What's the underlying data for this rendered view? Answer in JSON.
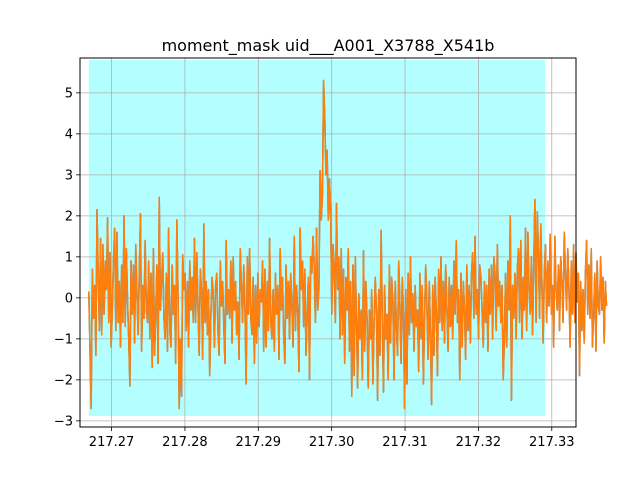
{
  "chart_data": {
    "type": "line",
    "title": "moment_mask uid___A001_X3788_X541b",
    "xlabel": "",
    "ylabel": "",
    "xlim": [
      217.2657,
      217.3333
    ],
    "ylim": [
      -3.15,
      5.85
    ],
    "grid": true,
    "x_ticks": [
      217.27,
      217.28,
      217.29,
      217.3,
      217.31,
      217.32,
      217.33
    ],
    "x_tick_labels": [
      "217.27",
      "217.28",
      "217.29",
      "217.30",
      "217.31",
      "217.32",
      "217.33"
    ],
    "y_ticks": [
      -3,
      -2,
      -1,
      0,
      1,
      2,
      3,
      4,
      5
    ],
    "y_tick_labels": [
      "−3",
      "−2",
      "−1",
      "0",
      "1",
      "2",
      "3",
      "4",
      "5"
    ],
    "mask_region": {
      "x": [
        217.2669,
        217.3291
      ],
      "y": [
        -2.88,
        5.8
      ],
      "color": "#b3ffff"
    },
    "series": [
      {
        "color": "#1f77b4",
        "x_start": 217.2669,
        "x_step": 0.00016,
        "values": [
          0.15,
          -1.2,
          -2.7,
          0.7,
          -0.5,
          0.3,
          -1.4,
          2.15,
          0.6,
          -0.8,
          1.45,
          -0.9,
          1.3,
          -0.4,
          0.9,
          0.2,
          1.95,
          -0.6,
          1.1,
          -1.2,
          -0.3,
          0.9,
          1.7,
          -0.8,
          1.6,
          -0.6,
          0.4,
          -1.2,
          0.8,
          -0.6,
          2.0,
          -0.7,
          1.2,
          -0.1,
          -1.0,
          -2.15,
          0.9,
          -0.4,
          0.8,
          -1.1,
          1.3,
          0.1,
          -0.9,
          0.6,
          2.05,
          -1.3,
          0.3,
          -0.5,
          1.4,
          -0.3,
          -0.6,
          0.9,
          -1.0,
          0.6,
          -1.7,
          1.2,
          -1.4,
          -0.4,
          0.8,
          -1.6,
          2.45,
          -0.3,
          0.4,
          1.1,
          -0.5,
          -1.0,
          0.6,
          -1.3,
          1.7,
          -0.8,
          -1.2,
          0.8,
          -0.4,
          0.3,
          -1.6,
          1.9,
          0.1,
          -2.7,
          -1.0,
          -2.4,
          1.05,
          0.2,
          0.6,
          -0.8,
          0.4,
          -1.2,
          0.9,
          -0.3,
          0.5,
          -0.6,
          1.45,
          -0.6,
          1.1,
          -0.2,
          -1.4,
          0.7,
          0.2,
          -1.5,
          1.8,
          -0.6,
          0.4,
          -0.9,
          0.2,
          -1.9,
          -0.4,
          0.5,
          0.1,
          -1.2,
          0.3,
          0.6,
          -0.8,
          -1.4,
          0.9,
          -0.2,
          0.4,
          -0.7,
          -1.6,
          1.4,
          -0.4,
          0.2,
          -0.5,
          0.9,
          -1.1,
          1.0,
          -0.3,
          0.4,
          -0.9,
          -0.1,
          -1.5,
          1.2,
          0.3,
          -0.6,
          0.8,
          -0.2,
          -2.1,
          1.0,
          -0.4,
          1.2,
          -0.5,
          -0.9,
          0.5,
          -1.6,
          0.3,
          -1.1,
          0.6,
          -0.7,
          0.2,
          -0.1,
          0.9,
          -1.3,
          0.7,
          -1.2,
          0.4,
          -0.8,
          1.45,
          -0.6,
          -1.0,
          0.2,
          -1.3,
          0.6,
          -0.4,
          0.3,
          -1.5,
          1.2,
          -0.3,
          0.5,
          -0.9,
          -1.6,
          0.8,
          -0.5,
          0.4,
          -1.0,
          0.6,
          -0.2,
          -1.2,
          1.5,
          -0.8,
          0.3,
          -0.4,
          -1.8,
          1.7,
          0.2,
          0.9,
          -0.7,
          0.7,
          -1.4,
          -0.4,
          0.5,
          -2.0,
          1.0,
          0.6,
          1.5,
          0.8,
          -0.6,
          1.7,
          -0.3,
          0.2,
          3.1,
          1.9,
          2.5,
          5.3,
          4.4,
          3.0,
          3.6,
          1.9,
          2.9,
          2.1,
          -0.4,
          1.3,
          0.8,
          -0.6,
          2.3,
          0.2,
          1.0,
          -1.0,
          1.2,
          -0.9,
          0.7,
          -1.6,
          0.5,
          -0.3,
          1.2,
          -1.3,
          0.4,
          -2.4,
          0.8,
          -1.9,
          1.0,
          -0.6,
          -2.2,
          0.1,
          -1.0,
          -0.3,
          -2.0,
          1.15,
          -1.3,
          0.4,
          -0.5,
          -2.2,
          -0.3,
          -1.0,
          0.2,
          -2.1,
          -0.6,
          0.5,
          -0.3,
          -2.5,
          0.2,
          -1.4,
          1.65,
          -0.5,
          -2.3,
          0.3,
          -1.0,
          -0.4,
          -2.0,
          0.8,
          -1.1,
          0.5,
          -0.1,
          -2.0,
          0.4,
          -0.7,
          -1.4,
          0.9,
          -0.2,
          -1.6,
          0.5,
          -0.4,
          -2.7,
          0.2,
          -2.1,
          0.6,
          -0.9,
          1.0,
          -0.6,
          0.1,
          -1.3,
          0.3,
          -0.7,
          -0.3,
          -1.8,
          0.6,
          -1.0,
          0.3,
          -2.1,
          -0.5,
          0.8,
          -0.2,
          -1.5,
          0.4,
          -0.9,
          -2.6,
          0.3,
          -1.4,
          0.5,
          -0.3,
          -1.9,
          0.7,
          -0.6,
          1.0,
          -0.8,
          0.4,
          -1.1,
          0.8,
          -0.2,
          -1.3,
          0.5,
          -0.7,
          0.3,
          -1.0,
          0.9,
          -0.4,
          1.4,
          -0.6,
          0.2,
          -2.0,
          0.6,
          -1.2,
          0.4,
          -0.3,
          -1.5,
          0.8,
          -0.8,
          0.3,
          -1.1,
          0.6,
          1.1,
          -0.5,
          1.5,
          -0.4,
          0.2,
          -1.0,
          0.8,
          0.5,
          -0.3,
          -1.2,
          0.4,
          -0.6,
          0.3,
          -1.3,
          0.7,
          -0.4,
          0.8,
          -1.0,
          1.0,
          0.6,
          -0.8,
          1.3,
          -0.2,
          0.4,
          -0.6,
          0.3,
          -2.0,
          -1.0,
          0.6,
          -1.2,
          0.9,
          -0.3,
          2.0,
          -2.5,
          0.3,
          -0.5,
          0.6,
          -1.0,
          0.7,
          1.2,
          -0.6,
          1.4,
          -1.0,
          0.5,
          -0.3,
          1.7,
          -0.8,
          1.6,
          0.2,
          -0.4,
          1.0,
          -0.9,
          0.8,
          2.4,
          -0.6,
          2.1,
          1.1,
          -0.5,
          1.8,
          0.3,
          -1.1,
          0.6,
          1.3,
          -0.6,
          0.9,
          -0.2,
          1.55,
          -0.4,
          0.3,
          -1.2,
          1.5,
          0.2,
          -0.3,
          0.8,
          -0.8,
          1.0,
          0.4,
          -0.6,
          1.6,
          0.6,
          -0.3,
          1.2,
          0.2,
          -1.2,
          0.9,
          -0.4,
          1.3,
          -0.6,
          1.1,
          -0.1,
          0.6,
          -1.9,
          0.4,
          -0.8,
          0.2,
          -1.1,
          0.6,
          1.4,
          -0.4,
          0.8,
          -0.5,
          1.2,
          -1.2,
          -0.4,
          0.6,
          -1.3,
          0.9,
          -0.2,
          -0.4,
          1.0,
          -0.3,
          0.5,
          -1.1,
          0.4,
          -0.2
        ]
      },
      {
        "color": "#ff7f0e",
        "x_start": 217.2669,
        "x_step": 0.00016,
        "values": [
          0.15,
          -1.2,
          -2.7,
          0.7,
          -0.5,
          0.3,
          -1.4,
          2.15,
          0.6,
          -0.8,
          1.45,
          -0.9,
          1.3,
          -0.4,
          0.9,
          0.2,
          1.95,
          -0.6,
          1.1,
          -1.2,
          -0.3,
          0.9,
          1.7,
          -0.8,
          1.6,
          -0.6,
          0.4,
          -1.2,
          0.8,
          -0.6,
          2.0,
          -0.7,
          1.2,
          -0.1,
          -1.0,
          -2.15,
          0.9,
          -0.4,
          0.8,
          -1.1,
          1.3,
          0.1,
          -0.9,
          0.6,
          2.05,
          -1.3,
          0.3,
          -0.5,
          1.4,
          -0.3,
          -0.6,
          0.9,
          -1.0,
          0.6,
          -1.7,
          1.2,
          -1.4,
          -0.4,
          0.8,
          -1.6,
          2.45,
          -0.3,
          0.4,
          1.1,
          -0.5,
          -1.0,
          0.6,
          -1.3,
          1.7,
          -0.8,
          -1.2,
          0.8,
          -0.4,
          0.3,
          -1.6,
          1.9,
          0.1,
          -2.7,
          -1.0,
          -2.4,
          1.05,
          0.2,
          0.6,
          -0.8,
          0.4,
          -1.2,
          0.9,
          -0.3,
          0.5,
          -0.6,
          1.45,
          -0.6,
          1.1,
          -0.2,
          -1.4,
          0.7,
          0.2,
          -1.5,
          1.8,
          -0.6,
          0.4,
          -0.9,
          0.2,
          -1.9,
          -0.4,
          0.5,
          0.1,
          -1.2,
          0.3,
          0.6,
          -0.8,
          -1.4,
          0.9,
          -0.2,
          0.4,
          -0.7,
          -1.6,
          1.4,
          -0.4,
          0.2,
          -0.5,
          0.9,
          -1.1,
          1.0,
          -0.3,
          0.4,
          -0.9,
          -0.1,
          -1.5,
          1.2,
          0.3,
          -0.6,
          0.8,
          -0.2,
          -2.1,
          1.0,
          -0.4,
          1.2,
          -0.5,
          -0.9,
          0.5,
          -1.6,
          0.3,
          -1.1,
          0.6,
          -0.7,
          0.2,
          -0.1,
          0.9,
          -1.3,
          0.7,
          -1.2,
          0.4,
          -0.8,
          1.45,
          -0.6,
          -1.0,
          0.2,
          -1.3,
          0.6,
          -0.4,
          0.3,
          -1.5,
          1.2,
          -0.3,
          0.5,
          -0.9,
          -1.6,
          0.8,
          -0.5,
          0.4,
          -1.0,
          0.6,
          -0.2,
          -1.2,
          1.5,
          -0.8,
          0.3,
          -0.4,
          -1.8,
          1.7,
          0.2,
          0.9,
          -0.7,
          0.7,
          -1.4,
          -0.4,
          0.5,
          -2.0,
          1.0,
          0.6,
          1.5,
          0.8,
          -0.6,
          1.7,
          -0.3,
          0.2,
          3.1,
          1.9,
          2.5,
          5.3,
          4.4,
          3.0,
          3.6,
          1.9,
          2.9,
          2.1,
          -0.4,
          1.3,
          0.8,
          -0.6,
          2.3,
          0.2,
          1.0,
          -1.0,
          1.2,
          -0.9,
          0.7,
          -1.6,
          0.5,
          -0.3,
          1.2,
          -1.3,
          0.4,
          -2.4,
          0.8,
          -1.9,
          1.0,
          -0.6,
          -2.2,
          0.1,
          -1.0,
          -0.3,
          -2.0,
          1.15,
          -1.3,
          0.4,
          -0.5,
          -2.2,
          -0.3,
          -1.0,
          0.2,
          -2.1,
          -0.6,
          0.5,
          -0.3,
          -2.5,
          0.2,
          -1.4,
          1.65,
          -0.5,
          -2.3,
          0.3,
          -1.0,
          -0.4,
          -2.0,
          0.8,
          -1.1,
          0.5,
          -0.1,
          -2.0,
          0.4,
          -0.7,
          -1.4,
          0.9,
          -0.2,
          -1.6,
          0.5,
          -0.4,
          -2.7,
          0.2,
          -2.1,
          0.6,
          -0.9,
          1.0,
          -0.6,
          0.1,
          -1.3,
          0.3,
          -0.7,
          -0.3,
          -1.8,
          0.6,
          -1.0,
          0.3,
          -2.1,
          -0.5,
          0.8,
          -0.2,
          -1.5,
          0.4,
          -0.9,
          -2.6,
          0.3,
          -1.4,
          0.5,
          -0.3,
          -1.9,
          0.7,
          -0.6,
          1.0,
          -0.8,
          0.4,
          -1.1,
          0.8,
          -0.2,
          -1.3,
          0.5,
          -0.7,
          0.3,
          -1.0,
          0.9,
          -0.4,
          1.4,
          -0.6,
          0.2,
          -2.0,
          0.6,
          -1.2,
          0.4,
          -0.3,
          -1.5,
          0.8,
          -0.8,
          0.3,
          -1.1,
          0.6,
          1.1,
          -0.5,
          1.5,
          -0.4,
          0.2,
          -1.0,
          0.8,
          0.5,
          -0.3,
          -1.2,
          0.4,
          -0.6,
          0.3,
          -1.3,
          0.7,
          -0.4,
          0.8,
          -1.0,
          1.0,
          0.6,
          -0.8,
          1.3,
          -0.2,
          0.4,
          -0.6,
          0.3,
          -2.0,
          -1.0,
          0.6,
          -1.2,
          0.9,
          -0.3,
          2.0,
          -2.5,
          0.3,
          -0.5,
          0.6,
          -1.0,
          0.7,
          1.2,
          -0.6,
          1.4,
          -1.0,
          0.5,
          -0.3,
          1.7,
          -0.8,
          1.6,
          0.2,
          -0.4,
          1.0,
          -0.9,
          0.8,
          2.4,
          -0.6,
          2.1,
          1.1,
          -0.5,
          1.8,
          0.3,
          -1.1,
          0.6,
          1.3,
          -0.6,
          0.9,
          -0.2,
          1.55,
          -0.4,
          0.3,
          -1.2,
          1.5,
          0.2,
          -0.3,
          0.8,
          -0.8,
          1.0,
          0.4,
          -0.6,
          1.6,
          0.6,
          -0.3,
          1.2,
          0.2,
          -1.2,
          0.9,
          -0.4,
          1.3,
          -0.6,
          1.1,
          -0.1,
          0.6,
          -1.9,
          0.4,
          -0.8,
          0.2,
          -1.1,
          0.6,
          1.4,
          -0.4,
          0.8,
          -0.5,
          1.2,
          -1.2,
          -0.4,
          0.6,
          -1.3,
          0.9,
          -0.2,
          -0.4,
          1.0,
          -0.3,
          0.5,
          -1.1,
          0.4,
          -0.2
        ]
      }
    ]
  }
}
